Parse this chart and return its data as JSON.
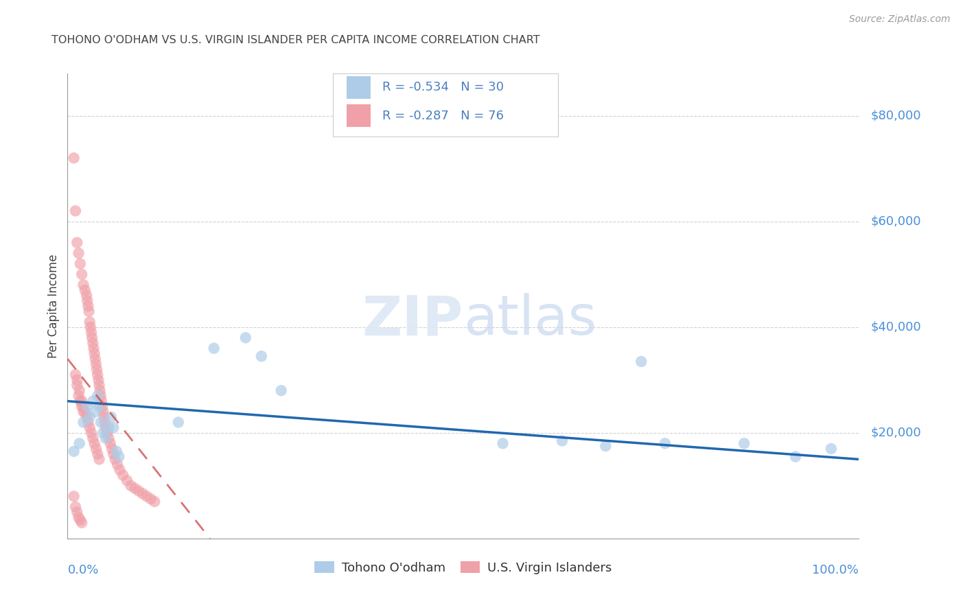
{
  "title": "TOHONO O'ODHAM VS U.S. VIRGIN ISLANDER PER CAPITA INCOME CORRELATION CHART",
  "source": "Source: ZipAtlas.com",
  "ylabel": "Per Capita Income",
  "y_tick_labels": [
    "$80,000",
    "$60,000",
    "$40,000",
    "$20,000"
  ],
  "y_tick_values": [
    80000,
    60000,
    40000,
    20000
  ],
  "ylim": [
    0,
    88000
  ],
  "xlim": [
    0.0,
    1.0
  ],
  "legend_label1": "Tohono O'odham",
  "legend_label2": "U.S. Virgin Islanders",
  "R1": -0.534,
  "N1": 30,
  "R2": -0.287,
  "N2": 76,
  "color_blue": "#aecce8",
  "color_pink": "#f0a0a8",
  "color_blue_line": "#2068b0",
  "color_pink_line": "#cc4444",
  "color_text_blue": "#4a7fc1",
  "color_axis_label": "#4a90d9",
  "background": "#ffffff",
  "title_color": "#444444",
  "tohono_x": [
    0.008,
    0.015,
    0.02,
    0.025,
    0.028,
    0.032,
    0.035,
    0.038,
    0.04,
    0.042,
    0.045,
    0.048,
    0.052,
    0.055,
    0.058,
    0.062,
    0.065,
    0.14,
    0.185,
    0.225,
    0.245,
    0.27,
    0.55,
    0.625,
    0.68,
    0.725,
    0.755,
    0.855,
    0.92,
    0.965
  ],
  "tohono_y": [
    16500,
    18000,
    22000,
    25000,
    23000,
    26000,
    24000,
    27000,
    25000,
    22000,
    20000,
    19000,
    21000,
    23000,
    21000,
    16500,
    15500,
    22000,
    36000,
    38000,
    34500,
    28000,
    18000,
    18500,
    17500,
    33500,
    18000,
    18000,
    15500,
    17000
  ],
  "virgin_x": [
    0.008,
    0.01,
    0.012,
    0.014,
    0.016,
    0.018,
    0.02,
    0.022,
    0.024,
    0.025,
    0.026,
    0.027,
    0.028,
    0.029,
    0.03,
    0.031,
    0.032,
    0.033,
    0.034,
    0.035,
    0.036,
    0.037,
    0.038,
    0.039,
    0.04,
    0.041,
    0.042,
    0.043,
    0.044,
    0.045,
    0.046,
    0.047,
    0.048,
    0.05,
    0.052,
    0.054,
    0.056,
    0.058,
    0.06,
    0.063,
    0.066,
    0.07,
    0.075,
    0.08,
    0.085,
    0.09,
    0.095,
    0.1,
    0.105,
    0.11,
    0.012,
    0.015,
    0.018,
    0.02,
    0.022,
    0.024,
    0.026,
    0.028,
    0.03,
    0.032,
    0.034,
    0.036,
    0.038,
    0.04,
    0.01,
    0.012,
    0.014,
    0.016,
    0.018,
    0.02,
    0.008,
    0.01,
    0.012,
    0.014,
    0.016,
    0.018
  ],
  "virgin_y": [
    72000,
    62000,
    56000,
    54000,
    52000,
    50000,
    48000,
    47000,
    46000,
    45000,
    44000,
    43000,
    41000,
    40000,
    39000,
    38000,
    37000,
    36000,
    35000,
    34000,
    33000,
    32000,
    31000,
    30000,
    29000,
    28000,
    27000,
    26000,
    25000,
    24000,
    23000,
    22000,
    21000,
    20000,
    19000,
    18000,
    17000,
    16000,
    15000,
    14000,
    13000,
    12000,
    11000,
    10000,
    9500,
    9000,
    8500,
    8000,
    7500,
    7000,
    30000,
    28000,
    26000,
    25000,
    24000,
    23000,
    22000,
    21000,
    20000,
    19000,
    18000,
    17000,
    16000,
    15000,
    31000,
    29000,
    27000,
    26000,
    25000,
    24000,
    8000,
    6000,
    5000,
    4000,
    3500,
    3000
  ],
  "blue_line_x0": 0.0,
  "blue_line_y0": 26000,
  "blue_line_x1": 1.0,
  "blue_line_y1": 15000,
  "pink_line_x0": 0.0,
  "pink_line_y0": 34000,
  "pink_line_x1": 0.18,
  "pink_line_y1": 0
}
